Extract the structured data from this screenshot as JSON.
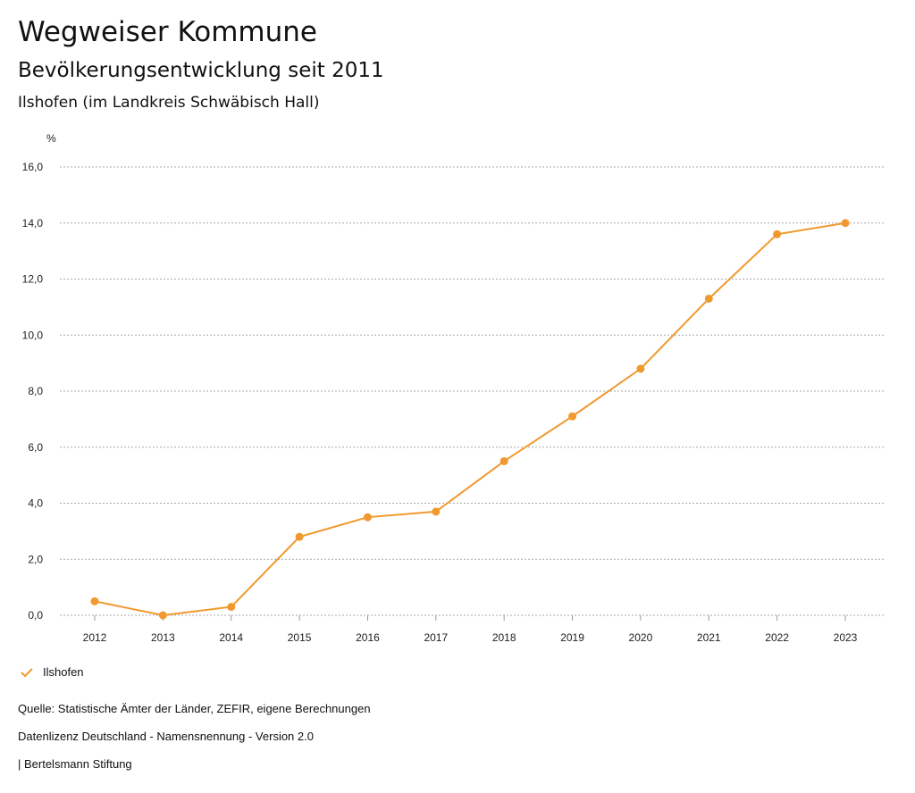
{
  "header": {
    "title": "Wegweiser Kommune",
    "subtitle": "Bevölkerungsentwicklung seit 2011",
    "region": "Ilshofen (im Landkreis Schwäbisch Hall)"
  },
  "chart_data": {
    "type": "line",
    "title": "Bevölkerungsentwicklung seit 2011",
    "ylabel": "%",
    "xlabel": "",
    "ylim": [
      0,
      16
    ],
    "yticks": [
      "0,0",
      "2,0",
      "4,0",
      "6,0",
      "8,0",
      "10,0",
      "12,0",
      "14,0",
      "16,0"
    ],
    "categories": [
      "2012",
      "2013",
      "2014",
      "2015",
      "2016",
      "2017",
      "2018",
      "2019",
      "2020",
      "2021",
      "2022",
      "2023"
    ],
    "grid": true,
    "series": [
      {
        "name": "Ilshofen",
        "color": "#f0992e",
        "values": [
          0.5,
          0.0,
          0.3,
          2.8,
          3.5,
          3.7,
          5.5,
          7.1,
          8.8,
          11.3,
          13.6,
          14.0
        ]
      }
    ],
    "legend_position": "bottom-left"
  },
  "footer": {
    "source": "Quelle: Statistische Ämter der Länder, ZEFIR, eigene Berechnungen",
    "license": "Datenlizenz Deutschland - Namensnennung - Version 2.0",
    "credit": "| Bertelsmann Stiftung"
  }
}
